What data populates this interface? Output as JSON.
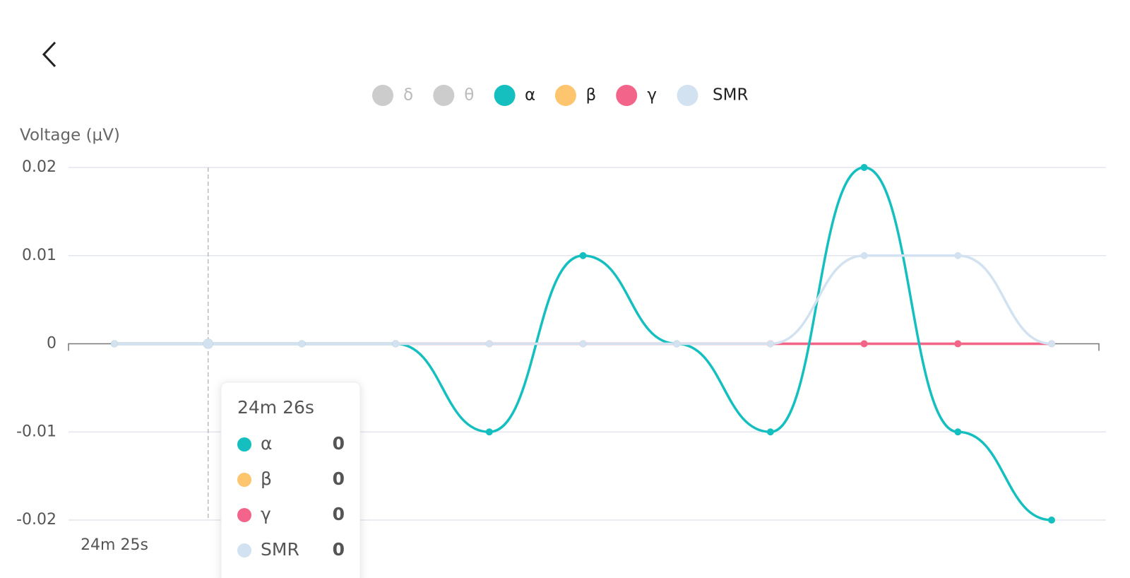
{
  "chart_data": {
    "type": "line",
    "y_label": "Voltage (μV)",
    "categories": [
      "24m 25s",
      null,
      null,
      null,
      null,
      null,
      null,
      null,
      null,
      null,
      null
    ],
    "series": [
      {
        "name": "α",
        "color": "#16bfbf",
        "values": [
          0,
          0,
          0,
          0,
          -0.01,
          0.01,
          0,
          -0.01,
          0.02,
          -0.01,
          -0.02
        ]
      },
      {
        "name": "β",
        "color": "#fcc56e",
        "values": [
          0,
          0,
          0,
          0,
          0,
          0,
          0,
          0,
          0,
          0,
          0
        ]
      },
      {
        "name": "γ",
        "color": "#f2648a",
        "values": [
          0,
          0,
          0,
          0,
          0,
          0,
          0,
          0,
          0,
          0,
          0
        ]
      },
      {
        "name": "SMR",
        "color": "#d3e2f0",
        "values": [
          0,
          0,
          0,
          0,
          0,
          0,
          0,
          0,
          0.01,
          0.01,
          0
        ]
      }
    ],
    "inactive_legend": [
      "δ",
      "θ"
    ],
    "inactive_color": "#cccccc",
    "ylim": [
      -0.02,
      0.02
    ],
    "yticks": [
      0.02,
      0.01,
      0,
      -0.01,
      -0.02
    ],
    "grid": true,
    "tooltip": {
      "title": "24m 26s",
      "index": 1
    }
  }
}
